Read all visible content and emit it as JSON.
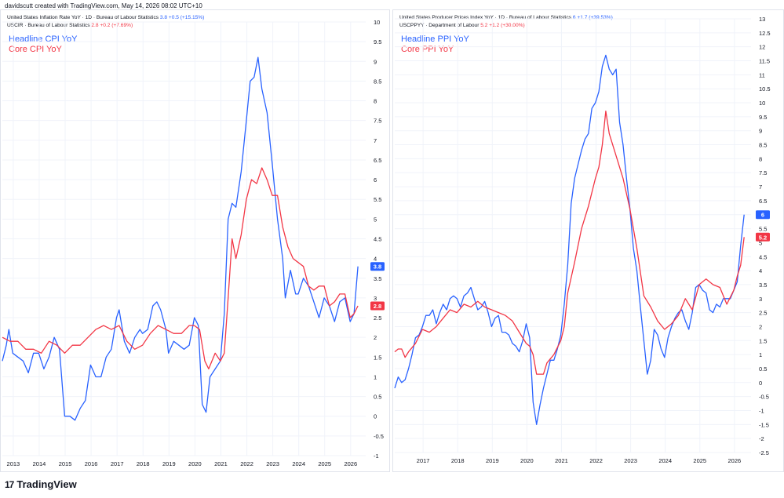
{
  "credit": "davidscutt created with TradingView.com, May 14, 2026 08:02 UTC+10",
  "footer": {
    "logo_text": "TradingView",
    "logo_mark": "17"
  },
  "colors": {
    "blue": "#2962ff",
    "red": "#f23645",
    "grid": "#f0f3fa",
    "axis_text": "#131722"
  },
  "left": {
    "header1_name": "United States Inflation Rate YoY · 1D · Bureau of Labour Statistics",
    "header1_value": "3.8 +0.5 (+15.15%)",
    "header2_name": "USCIR · Bureau of Labour Statistics",
    "header2_value": "2.8 +0.2 (+7.69%)",
    "legend_blue": "Headline CPI YoY",
    "legend_red": "Core CPI YoY",
    "badge_blue": "3.8",
    "badge_red": "2.8"
  },
  "right": {
    "header1_name": "United States Producer Prices Index YoY · 1D · Bureau of Labour Statistics",
    "header1_value": "6 +1.7 (+39.53%)",
    "header2_name": "USCPPYY · Department of Labour",
    "header2_value": "5.2 +1.2 (+30.00%)",
    "legend_blue": "Headline PPI YoY",
    "legend_red": "Core PPI YoY",
    "badge_blue": "6",
    "badge_red": "5.2"
  },
  "chart_data": [
    {
      "type": "line",
      "ylim": [
        -1,
        10
      ],
      "xlim": [
        2012.6,
        2026.6
      ],
      "x_ticks": [
        "2013",
        "2014",
        "2015",
        "2016",
        "2017",
        "2018",
        "2019",
        "2020",
        "2021",
        "2022",
        "2023",
        "2024",
        "2025",
        "2026"
      ],
      "y_ticks": [
        "-1",
        "-0.5",
        "0",
        "0.5",
        "1",
        "1.5",
        "2",
        "2.5",
        "3",
        "3.5",
        "4",
        "4.5",
        "5",
        "5.5",
        "6",
        "6.5",
        "7",
        "7.5",
        "8",
        "8.5",
        "9",
        "9.5",
        "10"
      ],
      "series": [
        {
          "name": "Headline CPI YoY",
          "color": "#2962ff",
          "x": [
            2012.6,
            2012.75,
            2012.85,
            2013.0,
            2013.2,
            2013.4,
            2013.6,
            2013.8,
            2014.0,
            2014.2,
            2014.4,
            2014.6,
            2014.8,
            2015.0,
            2015.2,
            2015.4,
            2015.6,
            2015.8,
            2016.0,
            2016.2,
            2016.4,
            2016.6,
            2016.8,
            2017.0,
            2017.1,
            2017.3,
            2017.5,
            2017.7,
            2017.9,
            2018.0,
            2018.2,
            2018.4,
            2018.55,
            2018.7,
            2018.9,
            2019.0,
            2019.2,
            2019.4,
            2019.6,
            2019.8,
            2020.0,
            2020.15,
            2020.3,
            2020.45,
            2020.6,
            2020.8,
            2021.0,
            2021.15,
            2021.3,
            2021.45,
            2021.6,
            2021.8,
            2022.0,
            2022.15,
            2022.3,
            2022.45,
            2022.6,
            2022.8,
            2023.0,
            2023.2,
            2023.4,
            2023.5,
            2023.7,
            2023.9,
            2024.0,
            2024.2,
            2024.4,
            2024.6,
            2024.8,
            2025.0,
            2025.2,
            2025.4,
            2025.6,
            2025.8,
            2026.0,
            2026.15,
            2026.3
          ],
          "y": [
            1.4,
            1.8,
            2.2,
            1.6,
            1.5,
            1.4,
            1.1,
            1.6,
            1.6,
            1.2,
            1.5,
            2.0,
            1.7,
            0.0,
            0.0,
            -0.1,
            0.2,
            0.4,
            1.3,
            1.0,
            1.0,
            1.5,
            1.7,
            2.5,
            2.7,
            1.9,
            1.6,
            2.0,
            2.2,
            2.1,
            2.2,
            2.8,
            2.9,
            2.7,
            2.2,
            1.6,
            1.9,
            1.8,
            1.7,
            1.8,
            2.5,
            2.3,
            0.3,
            0.1,
            1.0,
            1.2,
            1.4,
            2.6,
            5.0,
            5.4,
            5.3,
            6.2,
            7.5,
            8.5,
            8.6,
            9.1,
            8.3,
            7.7,
            6.4,
            5.0,
            4.0,
            3.0,
            3.7,
            3.1,
            3.1,
            3.5,
            3.3,
            2.9,
            2.5,
            3.0,
            2.8,
            2.4,
            2.9,
            3.0,
            2.4,
            2.6,
            3.8
          ]
        },
        {
          "name": "Core CPI YoY",
          "color": "#f23645",
          "x": [
            2012.6,
            2012.9,
            2013.2,
            2013.5,
            2013.8,
            2014.1,
            2014.4,
            2014.7,
            2015.0,
            2015.3,
            2015.6,
            2015.9,
            2016.2,
            2016.5,
            2016.8,
            2017.1,
            2017.4,
            2017.7,
            2018.0,
            2018.3,
            2018.6,
            2018.9,
            2019.2,
            2019.5,
            2019.8,
            2020.0,
            2020.2,
            2020.4,
            2020.55,
            2020.8,
            2021.0,
            2021.15,
            2021.3,
            2021.45,
            2021.6,
            2021.8,
            2022.0,
            2022.2,
            2022.4,
            2022.6,
            2022.8,
            2023.0,
            2023.2,
            2023.4,
            2023.6,
            2023.8,
            2024.0,
            2024.2,
            2024.4,
            2024.6,
            2024.8,
            2025.0,
            2025.2,
            2025.4,
            2025.6,
            2025.8,
            2026.0,
            2026.15,
            2026.3
          ],
          "y": [
            2.0,
            1.9,
            1.9,
            1.7,
            1.7,
            1.6,
            1.9,
            1.8,
            1.6,
            1.8,
            1.8,
            2.0,
            2.2,
            2.3,
            2.2,
            2.3,
            1.9,
            1.7,
            1.8,
            2.1,
            2.3,
            2.2,
            2.1,
            2.1,
            2.3,
            2.3,
            2.2,
            1.4,
            1.2,
            1.6,
            1.4,
            1.6,
            3.0,
            4.5,
            4.0,
            4.6,
            5.5,
            6.0,
            5.9,
            6.3,
            6.0,
            5.6,
            5.6,
            4.8,
            4.3,
            4.0,
            3.9,
            3.8,
            3.3,
            3.2,
            3.3,
            3.3,
            2.8,
            2.9,
            3.1,
            3.1,
            2.5,
            2.6,
            2.8
          ]
        }
      ]
    },
    {
      "type": "line",
      "ylim": [
        -2.5,
        13
      ],
      "xlim": [
        2016.2,
        2026.5
      ],
      "x_ticks": [
        "2017",
        "2018",
        "2019",
        "2020",
        "2021",
        "2022",
        "2023",
        "2024",
        "2025",
        "2026"
      ],
      "y_ticks": [
        "-2.5",
        "-2",
        "-1.5",
        "-1",
        "-0.5",
        "0",
        "0.5",
        "1",
        "1.5",
        "2",
        "2.5",
        "3",
        "3.5",
        "4",
        "4.5",
        "5",
        "5.5",
        "6",
        "6.5",
        "7",
        "7.5",
        "8",
        "8.5",
        "9",
        "9.5",
        "10",
        "10.5",
        "11",
        "11.5",
        "12",
        "12.5",
        "13"
      ],
      "series": [
        {
          "name": "Headline PPI YoY",
          "color": "#2962ff",
          "x": [
            2016.2,
            2016.3,
            2016.4,
            2016.5,
            2016.6,
            2016.7,
            2016.8,
            2016.9,
            2017.0,
            2017.1,
            2017.2,
            2017.3,
            2017.4,
            2017.5,
            2017.6,
            2017.7,
            2017.8,
            2017.9,
            2018.0,
            2018.1,
            2018.2,
            2018.3,
            2018.4,
            2018.5,
            2018.6,
            2018.7,
            2018.8,
            2018.9,
            2019.0,
            2019.1,
            2019.2,
            2019.3,
            2019.4,
            2019.5,
            2019.6,
            2019.7,
            2019.8,
            2019.9,
            2020.0,
            2020.1,
            2020.2,
            2020.3,
            2020.4,
            2020.5,
            2020.6,
            2020.7,
            2020.8,
            2020.9,
            2021.0,
            2021.1,
            2021.2,
            2021.3,
            2021.4,
            2021.5,
            2021.6,
            2021.7,
            2021.8,
            2021.9,
            2022.0,
            2022.1,
            2022.2,
            2022.3,
            2022.4,
            2022.5,
            2022.6,
            2022.7,
            2022.8,
            2022.9,
            2023.0,
            2023.1,
            2023.2,
            2023.3,
            2023.4,
            2023.5,
            2023.6,
            2023.7,
            2023.8,
            2023.9,
            2024.0,
            2024.1,
            2024.2,
            2024.3,
            2024.4,
            2024.5,
            2024.6,
            2024.7,
            2024.8,
            2024.9,
            2025.0,
            2025.1,
            2025.2,
            2025.3,
            2025.4,
            2025.5,
            2025.6,
            2025.7,
            2025.8,
            2025.9,
            2026.0,
            2026.1,
            2026.2,
            2026.3
          ],
          "y": [
            -0.2,
            0.2,
            0.0,
            0.1,
            0.5,
            1.0,
            1.6,
            1.7,
            2.0,
            2.4,
            2.4,
            2.6,
            2.1,
            2.5,
            2.8,
            2.6,
            3.0,
            3.1,
            3.0,
            2.7,
            3.1,
            3.2,
            3.4,
            3.0,
            2.6,
            2.7,
            2.9,
            2.5,
            2.0,
            2.3,
            2.4,
            1.8,
            1.8,
            1.7,
            1.4,
            1.3,
            1.1,
            1.5,
            2.1,
            1.6,
            -0.7,
            -1.5,
            -0.8,
            -0.2,
            0.3,
            0.8,
            0.8,
            1.2,
            1.7,
            2.8,
            4.2,
            6.4,
            7.3,
            7.8,
            8.3,
            8.7,
            8.9,
            9.8,
            10.0,
            10.4,
            11.3,
            11.7,
            11.2,
            11.0,
            11.2,
            9.3,
            8.5,
            7.3,
            6.2,
            4.8,
            4.0,
            2.7,
            1.5,
            0.3,
            0.8,
            1.9,
            1.7,
            1.2,
            0.9,
            1.6,
            2.0,
            2.3,
            2.5,
            2.6,
            2.2,
            1.9,
            2.5,
            3.4,
            3.5,
            3.3,
            3.2,
            2.6,
            2.5,
            2.8,
            2.7,
            3.0,
            3.0,
            3.0,
            3.3,
            3.6,
            4.9,
            6.0
          ]
        },
        {
          "name": "Core PPI YoY",
          "color": "#f23645",
          "x": [
            2016.2,
            2016.3,
            2016.4,
            2016.5,
            2016.6,
            2016.8,
            2017.0,
            2017.2,
            2017.4,
            2017.6,
            2017.8,
            2018.0,
            2018.2,
            2018.4,
            2018.6,
            2018.8,
            2019.0,
            2019.2,
            2019.4,
            2019.6,
            2019.8,
            2020.0,
            2020.1,
            2020.2,
            2020.3,
            2020.4,
            2020.5,
            2020.6,
            2020.8,
            2021.0,
            2021.1,
            2021.2,
            2021.4,
            2021.6,
            2021.8,
            2022.0,
            2022.1,
            2022.2,
            2022.3,
            2022.4,
            2022.6,
            2022.8,
            2023.0,
            2023.2,
            2023.4,
            2023.6,
            2023.8,
            2024.0,
            2024.2,
            2024.4,
            2024.6,
            2024.8,
            2025.0,
            2025.2,
            2025.4,
            2025.6,
            2025.8,
            2026.0,
            2026.1,
            2026.2,
            2026.3
          ],
          "y": [
            1.1,
            1.2,
            1.2,
            0.9,
            1.1,
            1.4,
            1.9,
            1.8,
            2.0,
            2.3,
            2.6,
            2.5,
            2.8,
            2.7,
            2.9,
            2.7,
            2.6,
            2.5,
            2.4,
            2.2,
            1.8,
            1.4,
            1.3,
            1.0,
            0.3,
            0.3,
            0.3,
            0.7,
            1.0,
            1.5,
            2.0,
            3.2,
            4.3,
            5.5,
            6.3,
            7.3,
            7.7,
            8.5,
            9.7,
            8.9,
            8.1,
            7.3,
            6.2,
            4.8,
            3.1,
            2.7,
            2.2,
            1.9,
            2.1,
            2.4,
            3.0,
            2.6,
            3.5,
            3.7,
            3.5,
            3.4,
            2.8,
            3.3,
            3.8,
            4.2,
            5.2
          ]
        }
      ]
    }
  ]
}
